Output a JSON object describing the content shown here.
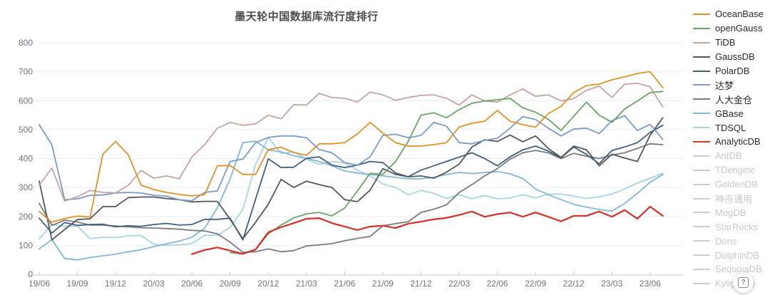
{
  "title": "墨天轮中国数据库流行度排行",
  "help_button": {
    "label": "?",
    "icon": "question-box"
  },
  "axis": {
    "y_tick_labels": [
      "0",
      "100",
      "200",
      "300",
      "400",
      "500",
      "600",
      "700",
      "800"
    ],
    "x_axis_labels": [
      "19/06",
      "19/09",
      "19/12",
      "20/03",
      "20/06",
      "20/09",
      "20/12",
      "21/03",
      "21/06",
      "21/09",
      "21/12",
      "22/03",
      "22/06",
      "22/09",
      "22/12",
      "23/03",
      "23/06"
    ]
  },
  "chart_data": {
    "type": "line",
    "title": "墨天轮中国数据库流行度排行",
    "xlabel": "",
    "ylabel": "",
    "ylim": [
      0,
      800
    ],
    "y_tick_step": 100,
    "grid": true,
    "legend_position": "right",
    "label_every": 3,
    "x": [
      "19/06",
      "19/07",
      "19/08",
      "19/09",
      "19/10",
      "19/11",
      "19/12",
      "20/01",
      "20/02",
      "20/03",
      "20/04",
      "20/05",
      "20/06",
      "20/07",
      "20/08",
      "20/09",
      "20/10",
      "20/11",
      "20/12",
      "21/01",
      "21/02",
      "21/03",
      "21/04",
      "21/05",
      "21/06",
      "21/07",
      "21/08",
      "21/09",
      "21/10",
      "21/11",
      "21/12",
      "22/01",
      "22/02",
      "22/03",
      "22/04",
      "22/05",
      "22/06",
      "22/07",
      "22/08",
      "22/09",
      "22/10",
      "22/11",
      "22/12",
      "23/01",
      "23/02",
      "23/03",
      "23/04",
      "23/05",
      "23/06",
      "23/07"
    ],
    "series": [
      {
        "name": "OceanBase",
        "color": "#df9326",
        "active": true,
        "values": [
          217,
          180,
          193,
          201,
          198,
          415,
          459,
          413,
          308,
          293,
          283,
          276,
          271,
          275,
          375,
          376,
          345,
          345,
          431,
          439,
          421,
          411,
          451,
          451,
          455,
          485,
          525,
          488,
          455,
          443,
          443,
          448,
          455,
          509,
          522,
          529,
          566,
          529,
          517,
          509,
          555,
          580,
          628,
          652,
          657,
          672,
          682,
          694,
          700,
          645
        ]
      },
      {
        "name": "openGauss",
        "color": "#6ba368",
        "active": true,
        "values": [
          null,
          null,
          null,
          null,
          null,
          null,
          null,
          null,
          null,
          null,
          null,
          null,
          null,
          null,
          null,
          75,
          70,
          85,
          140,
          170,
          195,
          209,
          214,
          202,
          229,
          288,
          349,
          345,
          390,
          460,
          550,
          558,
          541,
          569,
          591,
          599,
          603,
          608,
          575,
          560,
          536,
          497,
          546,
          595,
          550,
          525,
          571,
          599,
          628,
          632
        ]
      },
      {
        "name": "TiDB",
        "color": "#c5a5a1",
        "active": true,
        "values": [
          308,
          367,
          253,
          268,
          290,
          283,
          281,
          308,
          359,
          332,
          340,
          330,
          406,
          448,
          505,
          525,
          515,
          520,
          550,
          537,
          586,
          585,
          625,
          611,
          608,
          595,
          630,
          620,
          601,
          611,
          618,
          620,
          608,
          585,
          620,
          599,
          595,
          620,
          640,
          615,
          620,
          599,
          607,
          636,
          650,
          611,
          657,
          660,
          648,
          578
        ]
      },
      {
        "name": "GaussDB",
        "color": "#54575b",
        "active": true,
        "values": [
          322,
          119,
          155,
          189,
          192,
          234,
          234,
          265,
          267,
          267,
          262,
          258,
          250,
          252,
          252,
          190,
          123,
          180,
          242,
          328,
          300,
          322,
          310,
          300,
          258,
          251,
          291,
          365,
          345,
          337,
          340,
          332,
          353,
          381,
          440,
          465,
          459,
          481,
          458,
          478,
          435,
          404,
          443,
          430,
          375,
          415,
          402,
          390,
          480,
          541
        ]
      },
      {
        "name": "PolarDB",
        "color": "#42607c",
        "active": true,
        "values": [
          194,
          143,
          179,
          169,
          172,
          173,
          164,
          168,
          166,
          172,
          176,
          170,
          172,
          190,
          190,
          194,
          119,
          260,
          399,
          369,
          370,
          401,
          406,
          377,
          369,
          377,
          390,
          386,
          350,
          337,
          360,
          375,
          390,
          405,
          420,
          400,
          375,
          406,
          430,
          443,
          426,
          403,
          440,
          414,
          382,
          428,
          440,
          455,
          490,
          515
        ]
      },
      {
        "name": "达梦",
        "color": "#7d9bc7",
        "active": true,
        "values": [
          517,
          447,
          258,
          261,
          273,
          274,
          281,
          283,
          281,
          273,
          270,
          258,
          254,
          283,
          288,
          390,
          398,
          455,
          473,
          478,
          478,
          472,
          431,
          420,
          386,
          377,
          406,
          480,
          484,
          472,
          480,
          525,
          512,
          455,
          451,
          463,
          470,
          505,
          545,
          535,
          505,
          478,
          502,
          505,
          486,
          531,
          548,
          497,
          518,
          466
        ]
      },
      {
        "name": "人大金仓",
        "color": "#797b80",
        "active": true,
        "values": [
          245,
          169,
          187,
          181,
          170,
          170,
          167,
          164,
          161,
          160,
          158,
          156,
          152,
          150,
          140,
          111,
          76,
          78,
          88,
          78,
          82,
          98,
          102,
          106,
          116,
          124,
          131,
          168,
          175,
          182,
          214,
          225,
          240,
          283,
          310,
          340,
          365,
          398,
          420,
          428,
          420,
          400,
          418,
          408,
          400,
          412,
          420,
          435,
          451,
          448
        ]
      },
      {
        "name": "GBase",
        "color": "#82b8d2",
        "active": true,
        "values": [
          88,
          120,
          55,
          50,
          58,
          64,
          70,
          78,
          85,
          96,
          105,
          115,
          128,
          160,
          230,
          330,
          455,
          460,
          430,
          423,
          410,
          400,
          390,
          375,
          357,
          350,
          345,
          340,
          335,
          330,
          330,
          335,
          345,
          352,
          348,
          352,
          355,
          347,
          331,
          295,
          275,
          258,
          242,
          232,
          224,
          218,
          245,
          280,
          318,
          345
        ]
      },
      {
        "name": "TDSQL",
        "color": "#a8d5e0",
        "active": true,
        "values": [
          122,
          172,
          166,
          167,
          123,
          128,
          127,
          133,
          134,
          104,
          100,
          102,
          106,
          135,
          135,
          162,
          224,
          380,
          472,
          418,
          423,
          398,
          380,
          390,
          385,
          360,
          340,
          312,
          300,
          275,
          290,
          280,
          262,
          275,
          261,
          272,
          261,
          264,
          275,
          264,
          277,
          278,
          270,
          262,
          268,
          278,
          295,
          315,
          332,
          349
        ]
      },
      {
        "name": "AnalyticDB",
        "color": "#d23730",
        "active": true,
        "values": [
          null,
          null,
          null,
          null,
          null,
          null,
          null,
          null,
          null,
          null,
          null,
          null,
          70,
          84,
          93,
          82,
          71,
          86,
          145,
          163,
          177,
          192,
          194,
          177,
          165,
          153,
          165,
          168,
          160,
          175,
          182,
          190,
          195,
          205,
          217,
          199,
          208,
          214,
          199,
          214,
          199,
          183,
          202,
          202,
          217,
          199,
          222,
          192,
          234,
          202
        ]
      },
      {
        "name": "AntDB",
        "color": "#ccced3",
        "active": false,
        "values": []
      },
      {
        "name": "TDengine",
        "color": "#ccced3",
        "active": false,
        "values": []
      },
      {
        "name": "GoldenDB",
        "color": "#ccced3",
        "active": false,
        "values": []
      },
      {
        "name": "神舟通用",
        "color": "#ccced3",
        "active": false,
        "values": []
      },
      {
        "name": "MogDB",
        "color": "#ccced3",
        "active": false,
        "values": []
      },
      {
        "name": "StarRocks",
        "color": "#ccced3",
        "active": false,
        "values": []
      },
      {
        "name": "Doris",
        "color": "#ccced3",
        "active": false,
        "values": []
      },
      {
        "name": "DolphinDB",
        "color": "#ccced3",
        "active": false,
        "values": []
      },
      {
        "name": "SequoiaDB",
        "color": "#ccced3",
        "active": false,
        "values": []
      },
      {
        "name": "Kyligence",
        "color": "#ccced3",
        "active": false,
        "values": []
      }
    ],
    "colors": {
      "grid": "#e8edf6",
      "axis_line": "#c6c9cf",
      "tick_label": "#6f7480",
      "title": "#4c4c4c",
      "disabled_legend": "#ccced3"
    }
  }
}
